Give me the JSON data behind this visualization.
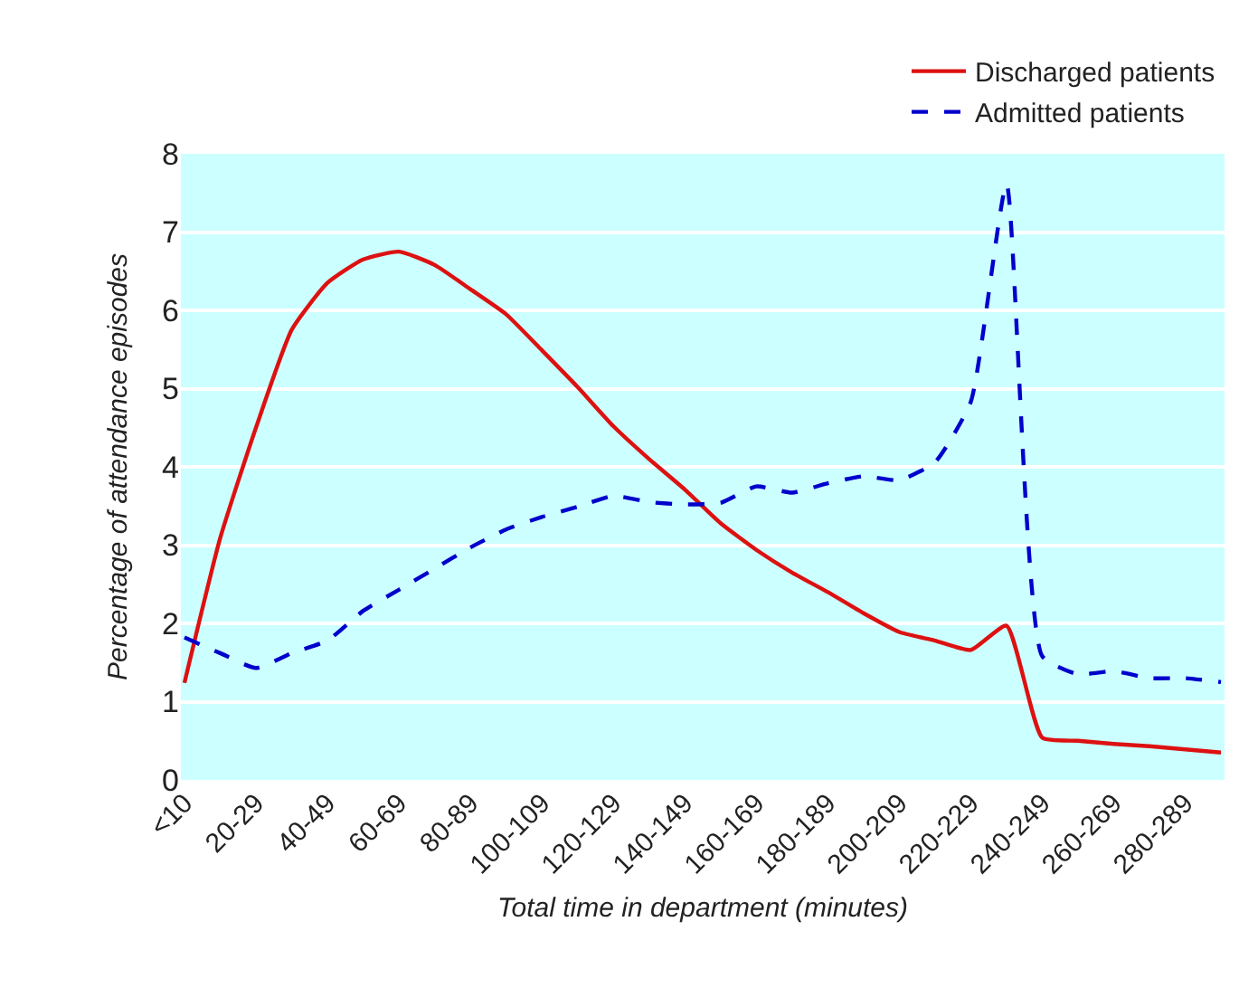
{
  "chart_data": {
    "type": "line",
    "xlabel": "Total time in department (minutes)",
    "ylabel": "Percentage of attendance episodes",
    "categories": [
      "<10",
      null,
      "20-29",
      null,
      "40-49",
      null,
      "60-69",
      null,
      "80-89",
      null,
      "100-109",
      null,
      "120-129",
      null,
      "140-149",
      null,
      "160-169",
      null,
      "180-189",
      null,
      "200-209",
      null,
      "220-229",
      null,
      "240-249",
      null,
      "260-269",
      null,
      "280-289",
      null
    ],
    "series": [
      {
        "name": "Discharged patients",
        "color": "#dd1111",
        "line_style": "solid",
        "values": [
          1.24,
          3.09,
          4.5,
          5.75,
          6.35,
          6.65,
          6.75,
          6.58,
          6.27,
          5.95,
          5.49,
          5.02,
          4.52,
          4.1,
          3.71,
          3.28,
          2.94,
          2.65,
          2.4,
          2.13,
          1.89,
          1.78,
          1.66,
          1.97,
          0.54,
          0.5,
          0.46,
          0.43,
          0.39,
          0.35
        ]
      },
      {
        "name": "Admitted patients",
        "color": "#0000cc",
        "line_style": "dashed",
        "values": [
          1.82,
          1.62,
          1.43,
          1.62,
          1.78,
          2.16,
          2.43,
          2.7,
          2.97,
          3.2,
          3.36,
          3.49,
          3.63,
          3.55,
          3.52,
          3.54,
          3.75,
          3.67,
          3.79,
          3.88,
          3.83,
          4.06,
          4.83,
          7.61,
          1.58,
          1.35,
          1.39,
          1.3,
          1.3,
          1.25
        ]
      }
    ],
    "ylim": [
      0,
      8
    ],
    "yticks": [
      0,
      1,
      2,
      3,
      4,
      5,
      6,
      7,
      8
    ],
    "grid": "y",
    "legend": "top right",
    "marker": "none"
  }
}
